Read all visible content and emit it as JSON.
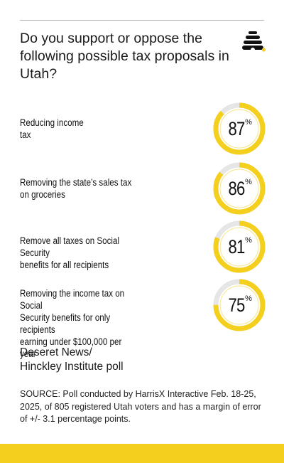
{
  "title": "Do you support or oppose the following possible tax proposals in Utah?",
  "logo_icon": "beehive-icon",
  "colors": {
    "accent": "#f4cf1d",
    "track": "#e6e6e6",
    "text": "#111111"
  },
  "chart_data": {
    "type": "donut",
    "unit": "%",
    "categories": [
      "Reducing income tax",
      "Removing the state’s sales tax on groceries",
      "Remove all taxes on Social Security benefits for all recipients",
      "Removing the income tax on Social Security benefits for only recipients earning under $100,000 per year"
    ],
    "values": [
      87,
      86,
      81,
      75
    ],
    "labels_lines": [
      [
        "Reducing income",
        "tax"
      ],
      [
        "Removing the state’s sales tax",
        "on groceries"
      ],
      [
        "Remove all taxes on Social Security",
        "benefits for all recipients"
      ],
      [
        "Removing the income tax on Social",
        "Security benefits for only recipients",
        "earning under $100,000 per year"
      ]
    ]
  },
  "source_name_lines": [
    "Deseret News/",
    "Hinckley Institute poll"
  ],
  "source_note": "SOURCE: Poll conducted by HarrisX Interactive Feb. 18-25, 2025, of 805 registered Utah voters and has a margin of error of +/- 3.1 percentage points."
}
